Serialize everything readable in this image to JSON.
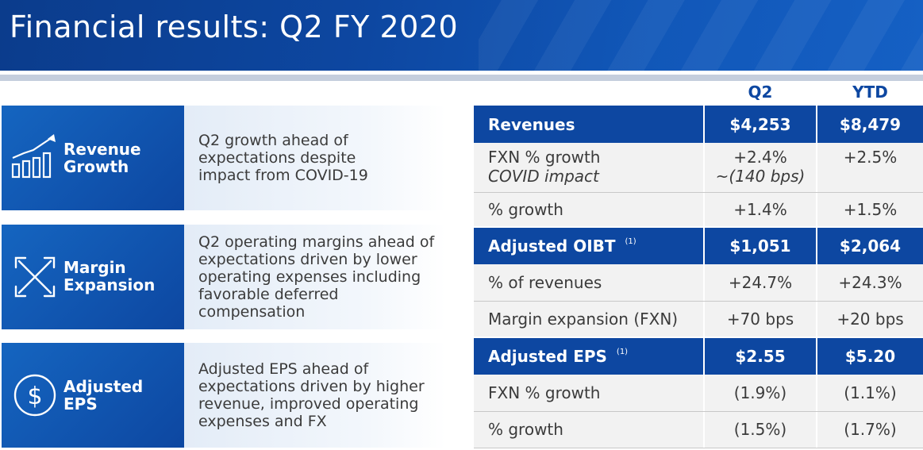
{
  "title": "Financial results: Q2 FY 2020",
  "colors": {
    "brand_blue": "#0d47a1",
    "row_gray": "#f2f2f2",
    "text": "#3b3b3b"
  },
  "cards": [
    {
      "icon": "growth-bar-chart-icon",
      "label_line1": "Revenue",
      "label_line2": "Growth",
      "text": "Q2 growth ahead of expectations despite impact from COVID-19"
    },
    {
      "icon": "expand-arrows-icon",
      "label_line1": "Margin",
      "label_line2": "Expansion",
      "text": "Q2 operating margins ahead of expectations driven by lower operating expenses including favorable deferred compensation"
    },
    {
      "icon": "dollar-circle-icon",
      "label_line1": "Adjusted",
      "label_line2": "EPS",
      "text": "Adjusted EPS ahead of expectations driven by higher revenue, improved operating expenses and FX"
    }
  ],
  "table": {
    "col_q2": "Q2",
    "col_ytd": "YTD",
    "revenues": {
      "label": "Revenues",
      "q2": "$4,253",
      "ytd": "$8,479"
    },
    "fxn_growth": {
      "label": "FXN % growth",
      "sub_label": "COVID impact",
      "q2": "+2.4%",
      "q2_sub": "~(140 bps)",
      "ytd": "+2.5%"
    },
    "rev_growth": {
      "label": "% growth",
      "q2": "+1.4%",
      "ytd": "+1.5%"
    },
    "oibt": {
      "label": "Adjusted OIBT",
      "footnote": "(1)",
      "q2": "$1,051",
      "ytd": "$2,064"
    },
    "pct_revenues": {
      "label": "% of revenues",
      "q2": "+24.7%",
      "ytd": "+24.3%"
    },
    "margin_exp": {
      "label": "Margin expansion (FXN)",
      "q2": "+70 bps",
      "ytd": "+20 bps"
    },
    "eps": {
      "label": "Adjusted EPS",
      "footnote": "(1)",
      "q2": "$2.55",
      "ytd": "$5.20"
    },
    "eps_fxn": {
      "label": "FXN % growth",
      "q2": "(1.9%)",
      "ytd": "(1.1%)"
    },
    "eps_growth": {
      "label": "% growth",
      "q2": "(1.5%)",
      "ytd": "(1.7%)"
    }
  }
}
